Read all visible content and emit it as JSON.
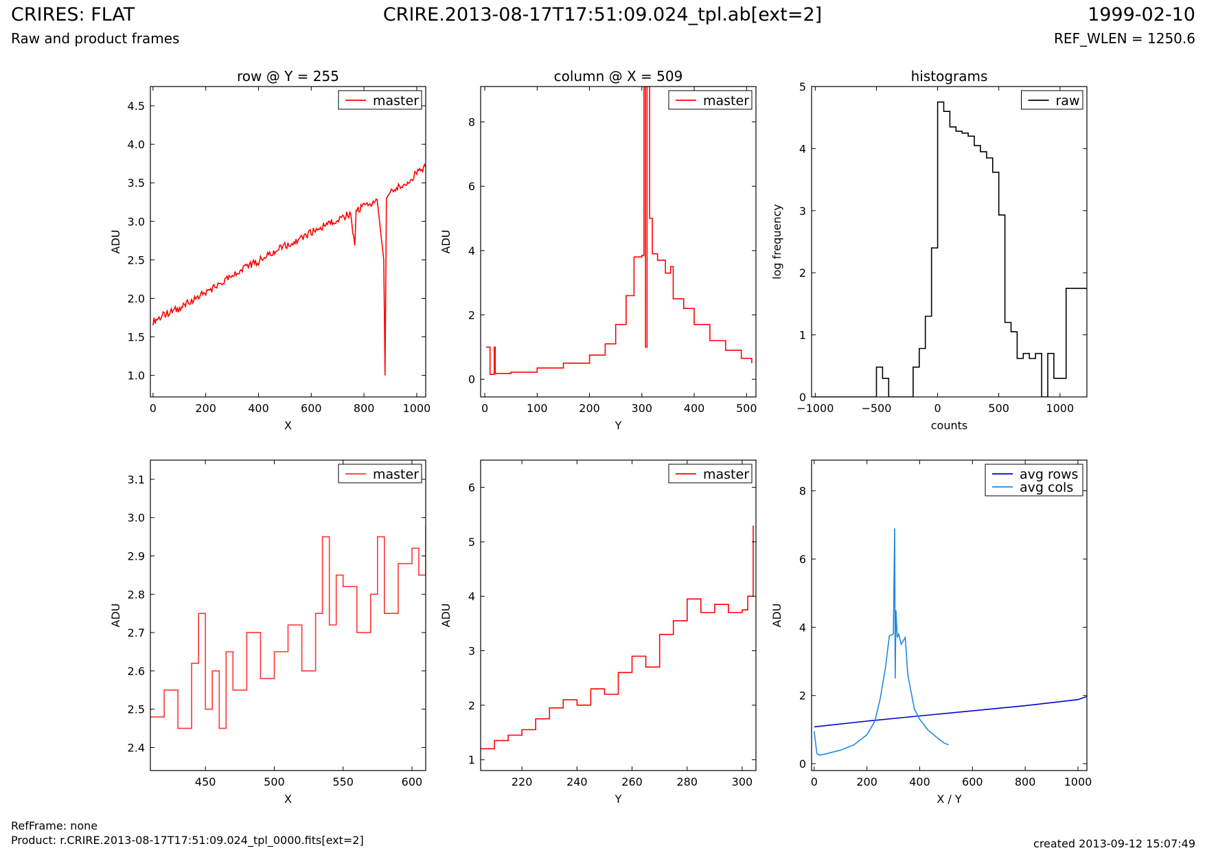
{
  "header": {
    "title_left": "CRIRES: FLAT",
    "subtitle_left": "Raw and product frames",
    "title_center": "CRIRE.2013-08-17T17:51:09.024_tpl.ab[ext=2]",
    "title_right": "1999-02-10",
    "subtitle_right": "REF_WLEN = 1250.6"
  },
  "footer": {
    "refframe": "RefFrame: none",
    "product": "Product: r.CRIRE.2013-08-17T17:51:09.024_tpl_0000.fits[ext=2]",
    "created": "created 2013-09-12 15:07:49"
  },
  "colors": {
    "master": "#ff0000",
    "master_zoom": "#ff3333",
    "raw": "#000000",
    "avg_rows": "#0000cc",
    "avg_cols": "#1e88e5"
  },
  "chart_data": [
    {
      "type": "line",
      "title": "row @ Y = 255",
      "xlabel": "X",
      "ylabel": "ADU",
      "xlim": [
        -10,
        1034
      ],
      "ylim": [
        0.72,
        4.75
      ],
      "xticks": [
        0,
        200,
        400,
        600,
        800,
        1000
      ],
      "yticks": [
        1.0,
        1.5,
        2.0,
        2.5,
        3.0,
        3.5,
        4.0,
        4.5
      ],
      "ytick_labels": [
        "1.0",
        "1.5",
        "2.0",
        "2.5",
        "3.0",
        "3.5",
        "4.0",
        "4.5"
      ],
      "legend": "top-right",
      "series": [
        {
          "name": "master",
          "color": "#ff0000",
          "step": false,
          "x": [
            0,
            50,
            100,
            150,
            200,
            250,
            300,
            350,
            400,
            450,
            500,
            550,
            600,
            650,
            700,
            750,
            765,
            770,
            800,
            850,
            875,
            880,
            885,
            900,
            950,
            1000,
            1034
          ],
          "y": [
            1.7,
            1.8,
            1.87,
            1.97,
            2.08,
            2.18,
            2.28,
            2.4,
            2.48,
            2.58,
            2.68,
            2.75,
            2.85,
            2.95,
            3.02,
            3.1,
            2.65,
            3.12,
            3.2,
            3.28,
            2.5,
            1.0,
            3.3,
            3.38,
            3.48,
            3.62,
            3.7
          ]
        }
      ]
    },
    {
      "type": "line",
      "title": "column @ X = 509",
      "xlabel": "Y",
      "ylabel": "ADU",
      "xlim": [
        -8,
        518
      ],
      "ylim": [
        -0.55,
        9.1
      ],
      "xticks": [
        0,
        100,
        200,
        300,
        400,
        500
      ],
      "yticks": [
        0,
        2,
        4,
        6,
        8
      ],
      "ytick_labels": [
        "0",
        "2",
        "4",
        "6",
        "8"
      ],
      "legend": "top-right",
      "series": [
        {
          "name": "master",
          "color": "#ff0000",
          "step": true,
          "x": [
            2,
            8,
            10,
            18,
            20,
            50,
            100,
            150,
            200,
            230,
            250,
            270,
            285,
            300,
            304,
            307,
            310,
            315,
            320,
            330,
            345,
            355,
            360,
            380,
            400,
            430,
            460,
            490,
            510
          ],
          "y": [
            1.0,
            1.0,
            0.15,
            1.0,
            0.18,
            0.22,
            0.35,
            0.5,
            0.75,
            1.1,
            1.7,
            2.6,
            3.8,
            3.85,
            9.1,
            1.0,
            9.1,
            5.0,
            3.9,
            3.7,
            3.3,
            3.5,
            2.5,
            2.2,
            1.7,
            1.2,
            0.9,
            0.65,
            0.5
          ]
        }
      ]
    },
    {
      "type": "line",
      "title": "histograms",
      "xlabel": "counts",
      "ylabel": "log frequency",
      "xlim": [
        -1030,
        1220
      ],
      "ylim": [
        0,
        5
      ],
      "xticks": [
        -1000,
        -500,
        0,
        500,
        1000
      ],
      "xtick_labels": [
        "−1000",
        "−500",
        "0",
        "500",
        "1000"
      ],
      "yticks": [
        0,
        1,
        2,
        3,
        4,
        5
      ],
      "ytick_labels": [
        "0",
        "1",
        "2",
        "3",
        "4",
        "5"
      ],
      "legend": "top-right",
      "series": [
        {
          "name": "raw",
          "color": "#000000",
          "step": true,
          "x": [
            -1030,
            -500,
            -450,
            -400,
            -350,
            -200,
            -150,
            -100,
            -50,
            0,
            50,
            100,
            150,
            200,
            250,
            300,
            350,
            400,
            450,
            500,
            550,
            600,
            650,
            700,
            750,
            800,
            850,
            900,
            950,
            1000,
            1050,
            1100,
            1150,
            1200,
            1220
          ],
          "y": [
            0,
            0.48,
            0.3,
            0,
            0,
            0.48,
            0.78,
            1.3,
            2.4,
            4.75,
            4.6,
            4.35,
            4.28,
            4.25,
            4.2,
            4.05,
            3.95,
            3.85,
            3.62,
            2.93,
            1.2,
            1.05,
            0.62,
            0.7,
            0.62,
            0.7,
            0.0,
            0.7,
            0.3,
            0.3,
            1.75,
            1.75,
            1.75,
            1.75,
            1.75
          ]
        }
      ]
    },
    {
      "type": "line",
      "title": "",
      "xlabel": "X",
      "ylabel": "ADU",
      "xlim": [
        410,
        610
      ],
      "ylim": [
        2.34,
        3.15
      ],
      "xticks": [
        450,
        500,
        550,
        600
      ],
      "yticks": [
        2.4,
        2.5,
        2.6,
        2.7,
        2.8,
        2.9,
        3.0,
        3.1
      ],
      "ytick_labels": [
        "2.4",
        "2.5",
        "2.6",
        "2.7",
        "2.8",
        "2.9",
        "3.0",
        "3.1"
      ],
      "legend": "top-right",
      "series": [
        {
          "name": "master",
          "color": "#ff3333",
          "step": true,
          "x": [
            410,
            420,
            430,
            440,
            445,
            450,
            455,
            460,
            465,
            470,
            480,
            490,
            500,
            510,
            520,
            530,
            535,
            540,
            545,
            550,
            560,
            570,
            575,
            580,
            590,
            600,
            605,
            610
          ],
          "y": [
            2.48,
            2.55,
            2.45,
            2.62,
            2.75,
            2.5,
            2.6,
            2.45,
            2.65,
            2.55,
            2.7,
            2.58,
            2.65,
            2.72,
            2.6,
            2.75,
            2.95,
            2.72,
            2.85,
            2.82,
            2.7,
            2.8,
            2.95,
            2.75,
            2.88,
            2.92,
            2.85,
            2.98
          ]
        }
      ]
    },
    {
      "type": "line",
      "title": "",
      "xlabel": "Y",
      "ylabel": "ADU",
      "xlim": [
        205,
        305
      ],
      "ylim": [
        0.8,
        6.5
      ],
      "xticks": [
        220,
        240,
        260,
        280,
        300
      ],
      "yticks": [
        1,
        2,
        3,
        4,
        5,
        6
      ],
      "ytick_labels": [
        "1",
        "2",
        "3",
        "4",
        "5",
        "6"
      ],
      "legend": "top-right",
      "series": [
        {
          "name": "master",
          "color": "#ff0000",
          "step": true,
          "x": [
            205,
            210,
            215,
            220,
            225,
            230,
            235,
            240,
            245,
            250,
            255,
            260,
            265,
            270,
            275,
            280,
            285,
            290,
            295,
            300,
            302,
            304
          ],
          "y": [
            1.2,
            1.35,
            1.45,
            1.55,
            1.75,
            1.95,
            2.1,
            2.0,
            2.3,
            2.2,
            2.6,
            2.9,
            2.7,
            3.3,
            3.55,
            3.95,
            3.7,
            3.85,
            3.7,
            3.75,
            4.0,
            5.3
          ]
        }
      ]
    },
    {
      "type": "line",
      "title": "",
      "xlabel": "X / Y",
      "ylabel": "ADU",
      "xlim": [
        -10,
        1034
      ],
      "ylim": [
        -0.2,
        8.9
      ],
      "xticks": [
        0,
        200,
        400,
        600,
        800,
        1000
      ],
      "yticks": [
        0,
        2,
        4,
        6,
        8
      ],
      "ytick_labels": [
        "0",
        "2",
        "4",
        "6",
        "8"
      ],
      "legend": "top-right",
      "series": [
        {
          "name": "avg rows",
          "color": "#0000cc",
          "step": false,
          "x": [
            0,
            200,
            400,
            600,
            800,
            1000,
            1034
          ],
          "y": [
            1.08,
            1.25,
            1.4,
            1.55,
            1.7,
            1.88,
            1.97
          ]
        },
        {
          "name": "avg cols",
          "color": "#1e88e5",
          "step": false,
          "x": [
            0,
            10,
            20,
            50,
            100,
            150,
            200,
            230,
            250,
            270,
            285,
            300,
            305,
            307,
            310,
            315,
            320,
            330,
            345,
            355,
            360,
            380,
            400,
            430,
            460,
            490,
            510
          ],
          "y": [
            0.95,
            0.3,
            0.25,
            0.3,
            0.4,
            0.55,
            0.85,
            1.25,
            1.9,
            2.8,
            3.75,
            3.8,
            6.9,
            2.5,
            4.5,
            3.7,
            3.8,
            3.5,
            3.7,
            2.6,
            2.4,
            1.6,
            1.3,
            1.0,
            0.8,
            0.62,
            0.55
          ]
        }
      ]
    }
  ]
}
